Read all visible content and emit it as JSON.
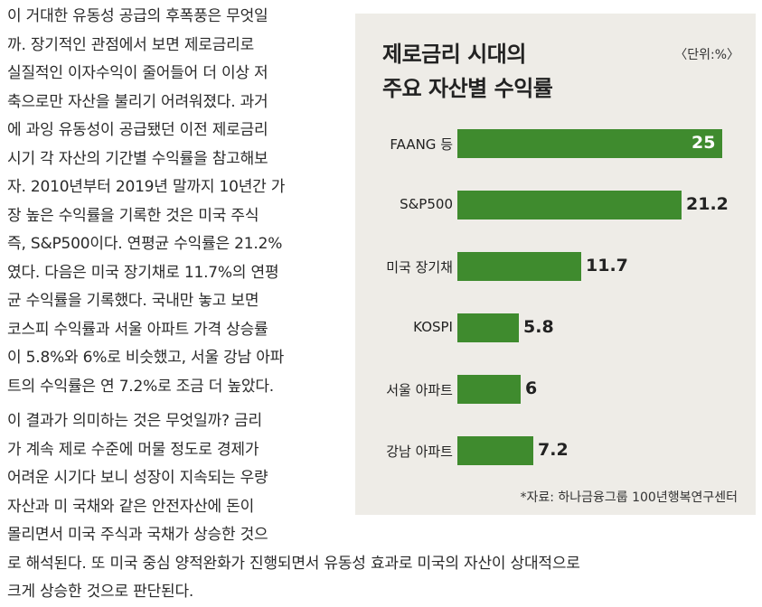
{
  "article": {
    "paragraph1": [
      "이 거대한 유동성 공급의 후폭풍은 무엇일",
      "까. 장기적인 관점에서 보면 제로금리로",
      "실질적인 이자수익이 줄어들어 더 이상 저",
      "축으로만 자산을 불리기 어려워졌다. 과거",
      "에 과잉 유동성이 공급됐던 이전 제로금리",
      "시기 각 자산의 기간별 수익률을 참고해보",
      "자. 2010년부터 2019년 말까지 10년간 가",
      "장 높은 수익률을 기록한 것은 미국 주식",
      "즉, S&P500이다. 연평균 수익률은 21.2%",
      "였다. 다음은 미국 장기채로 11.7%의 연평",
      "균 수익률을 기록했다. 국내만 놓고 보면",
      "코스피 수익률과 서울 아파트 가격 상승률",
      "이 5.8%와 6%로 비슷했고, 서울 강남 아파",
      "트의 수익률은 연 7.2%로 조금 더 높았다."
    ],
    "paragraph2": [
      "이 결과가 의미하는 것은 무엇일까? 금리",
      "가 계속 제로 수준에 머물 정도로 경제가",
      "어려운 시기다 보니 성장이 지속되는 우량",
      "자산과 미 국채와 같은 안전자산에 돈이",
      "몰리면서 미국 주식과 국채가 상승한 것으",
      "로 해석된다. 또 미국 중심 양적완화가 진행되면서 유동성 효과로 미국의 자산이 상대적으로",
      "크게 상승한 것으로 판단된다."
    ]
  },
  "chart_data": {
    "type": "bar",
    "orientation": "horizontal",
    "title": [
      "제로금리 시대의",
      "주요 자산별 수익률"
    ],
    "unit": "〈단위:%〉",
    "categories": [
      "FAANG 등",
      "S&P500",
      "미국 장기채",
      "KOSPI",
      "서울 아파트",
      "강남 아파트"
    ],
    "values": [
      25,
      21.2,
      11.7,
      5.8,
      6,
      7.2
    ],
    "value_labels": [
      "25",
      "21.2",
      "11.7",
      "5.8",
      "6",
      "7.2"
    ],
    "bar_color": "#3f8b2e",
    "xlim": [
      0,
      25
    ],
    "source": "*자료: 하나금융그룹 100년행복연구센터"
  }
}
